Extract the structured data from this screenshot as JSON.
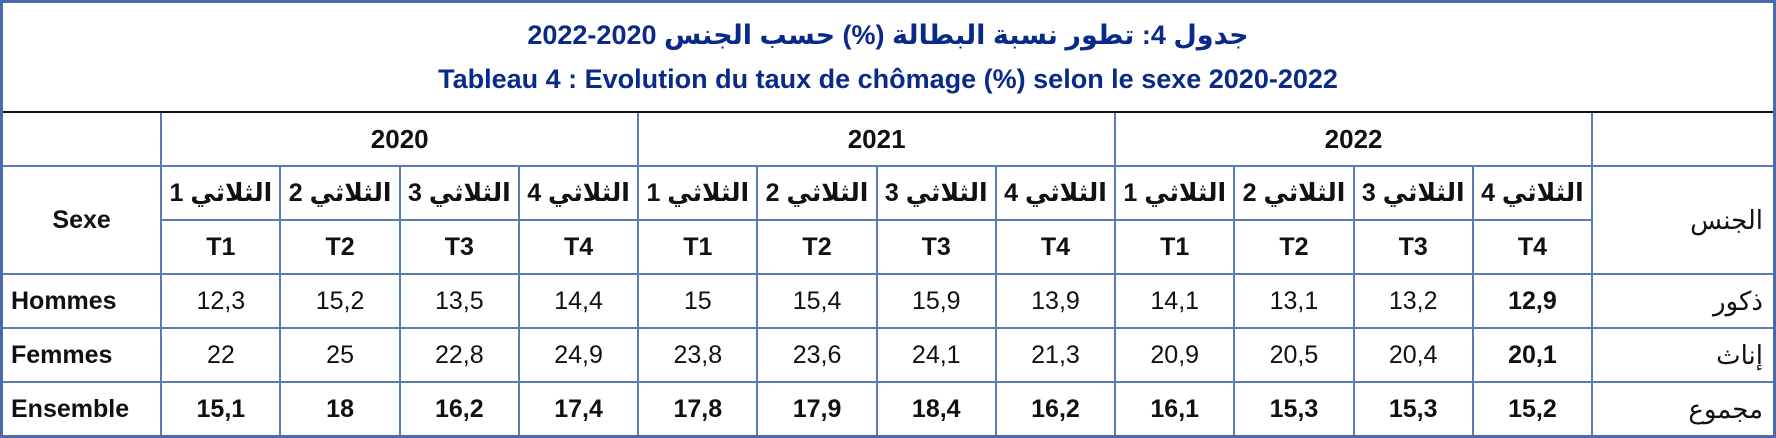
{
  "title": {
    "ar": "جدول 4: تطور نسبة البطالة (%) حسب الجنس 2020-2022",
    "fr": "Tableau 4 : Evolution du taux de chômage (%) selon le sexe 2020-2022"
  },
  "header": {
    "sexe": "Sexe",
    "jins": "الجنس",
    "years": [
      "2020",
      "2021",
      "2022"
    ],
    "quarters_ar": [
      "الثلاثي 1",
      "الثلاثي 2",
      "الثلاثي 3",
      "الثلاثي 4"
    ],
    "quarters_fr": [
      "T1",
      "T2",
      "T3",
      "T4"
    ]
  },
  "rows": [
    {
      "label_fr": "Hommes",
      "label_ar": "ذكور",
      "values": [
        "12,3",
        "15,2",
        "13,5",
        "14,4",
        "15",
        "15,4",
        "15,9",
        "13,9",
        "14,1",
        "13,1",
        "13,2",
        "12,9"
      ]
    },
    {
      "label_fr": "Femmes",
      "label_ar": "إناث",
      "values": [
        "22",
        "25",
        "22,8",
        "24,9",
        "23,8",
        "23,6",
        "24,1",
        "21,3",
        "20,9",
        "20,5",
        "20,4",
        "20,1"
      ]
    },
    {
      "label_fr": "Ensemble",
      "label_ar": "مجموع",
      "values": [
        "15,1",
        "18",
        "16,2",
        "17,4",
        "17,8",
        "17,9",
        "18,4",
        "16,2",
        "16,1",
        "15,3",
        "15,3",
        "15,2"
      ]
    }
  ]
}
